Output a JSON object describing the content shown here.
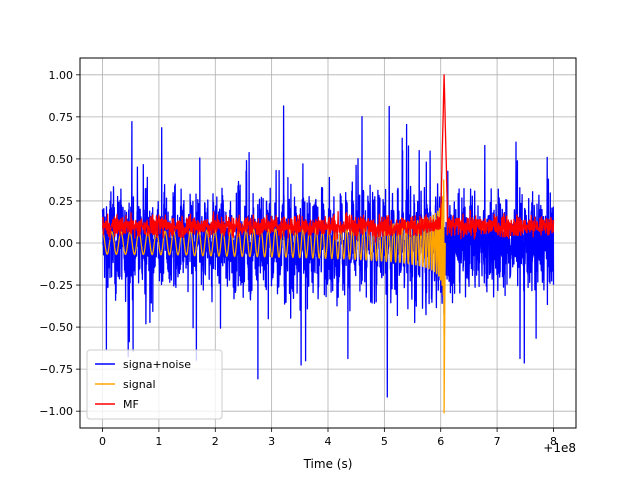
{
  "chart_data": {
    "type": "line",
    "xlabel": "Time (s)",
    "ylabel": "",
    "offset_label": "+1e8",
    "xlim": [
      -0.4,
      8.4
    ],
    "ylim": [
      -1.1,
      1.1
    ],
    "xticks": [
      0,
      1,
      2,
      3,
      4,
      5,
      6,
      7,
      8
    ],
    "yticks": [
      -1.0,
      -0.75,
      -0.5,
      -0.25,
      0.0,
      0.25,
      0.5,
      0.75,
      1.0
    ],
    "xtick_labels": [
      "0",
      "1",
      "2",
      "3",
      "4",
      "5",
      "6",
      "7",
      "8"
    ],
    "ytick_labels": [
      "−1.00",
      "−0.75",
      "−0.50",
      "−0.25",
      "0.00",
      "0.25",
      "0.50",
      "0.75",
      "1.00"
    ],
    "grid": true,
    "legend": "lower-left",
    "series": [
      {
        "name": "signa+noise",
        "color": "#0000ff",
        "description_values": {
          "x_range": [
            0,
            8
          ],
          "envelope_max": 0.97,
          "envelope_min": -0.98
        }
      },
      {
        "name": "signal",
        "color": "#ffa500",
        "description_values": {
          "x_range": [
            0,
            6.06
          ],
          "peak": 1.0,
          "trough": -1.01,
          "merger_x": 6.06
        }
      },
      {
        "name": "MF",
        "color": "#ff0000",
        "description_values": {
          "x_range": [
            0,
            8
          ],
          "baseline": 0.1,
          "peak": 1.0,
          "peak_x": 6.06
        }
      }
    ]
  }
}
